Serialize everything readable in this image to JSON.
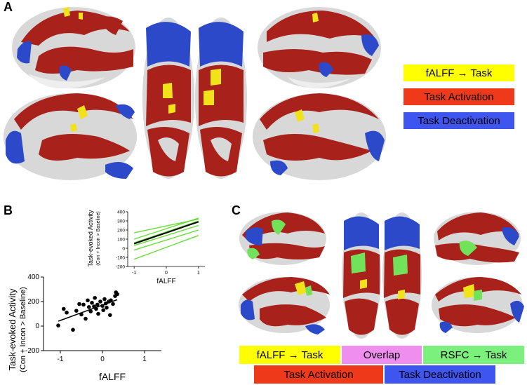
{
  "panels": {
    "a": {
      "label": "A"
    },
    "b": {
      "label": "B"
    },
    "c": {
      "label": "C"
    }
  },
  "legend_a": [
    {
      "text": "fALFF → Task",
      "color": "#ffff00"
    },
    {
      "text": "Task Activation",
      "color": "#ee3a1a"
    },
    {
      "text": "Task Deactivation",
      "color": "#3f55f0"
    }
  ],
  "legend_c": {
    "row1": [
      {
        "text": "fALFF → Task",
        "color": "#ffff00"
      },
      {
        "text": "Overlap",
        "color": "#f08ef0"
      },
      {
        "text": "RSFC → Task",
        "color": "#7cf07c"
      }
    ],
    "row2": [
      {
        "text": "Task Activation",
        "color": "#ee3a1a"
      },
      {
        "text": "Task Deactivation",
        "color": "#3f55f0"
      }
    ]
  },
  "colors": {
    "brain_gray": "#d8d8d8",
    "activation": "#a8211b",
    "deactivation": "#2b49c8",
    "falff": "#f2e21a",
    "rsfc": "#72e25a"
  },
  "chart_data": [
    {
      "type": "scatter",
      "ylabel": "Task-evoked Activity",
      "ylabel_sub": "(Con + Incon > Baseline)",
      "xlabel": "fALFF",
      "xlim": [
        -1.4,
        1.4
      ],
      "ylim": [
        -200,
        400
      ],
      "xticks": [
        -1,
        0,
        1
      ],
      "yticks": [
        -200,
        0,
        200,
        400
      ],
      "x": [
        -1.05,
        -0.92,
        -0.85,
        -0.7,
        -0.62,
        -0.55,
        -0.5,
        -0.45,
        -0.4,
        -0.35,
        -0.32,
        -0.28,
        -0.25,
        -0.2,
        -0.18,
        -0.15,
        -0.12,
        -0.1,
        -0.05,
        0.0,
        0.02,
        0.05,
        0.08,
        0.1,
        0.15,
        0.18,
        0.2,
        0.25,
        0.3,
        0.32,
        0.35
      ],
      "y": [
        5,
        140,
        110,
        -30,
        125,
        180,
        95,
        175,
        60,
        210,
        155,
        120,
        190,
        160,
        230,
        140,
        175,
        100,
        200,
        165,
        130,
        220,
        185,
        150,
        200,
        90,
        210,
        180,
        245,
        275,
        260
      ],
      "fit_line": {
        "x": [
          -1.05,
          0.35
        ],
        "y": [
          40,
          215
        ]
      }
    },
    {
      "type": "line",
      "ylabel": "Task-evoked Activity",
      "ylabel_sub": "(Con + Incon > Baseline)",
      "xlabel": "fALFF",
      "xlim": [
        -1.2,
        1.2
      ],
      "ylim": [
        -200,
        400
      ],
      "xticks": [
        -1,
        0,
        1
      ],
      "yticks": [
        -200,
        -100,
        0,
        100,
        200,
        300,
        400
      ],
      "series": [
        {
          "x": [
            -1,
            1
          ],
          "y": [
            100,
            330
          ],
          "color": "#66dd33"
        },
        {
          "x": [
            -1,
            1
          ],
          "y": [
            60,
            300
          ],
          "color": "#66dd33"
        },
        {
          "x": [
            -1,
            1
          ],
          "y": [
            30,
            250
          ],
          "color": "#66dd33"
        },
        {
          "x": [
            -1,
            1
          ],
          "y": [
            -20,
            200
          ],
          "color": "#66dd33"
        },
        {
          "x": [
            -1,
            1
          ],
          "y": [
            -120,
            140
          ],
          "color": "#66dd33"
        },
        {
          "x": [
            -1,
            1
          ],
          "y": [
            170,
            320
          ],
          "color": "#66dd33"
        },
        {
          "x": [
            -1,
            1
          ],
          "y": [
            50,
            290
          ],
          "color": "#000000"
        }
      ]
    }
  ]
}
